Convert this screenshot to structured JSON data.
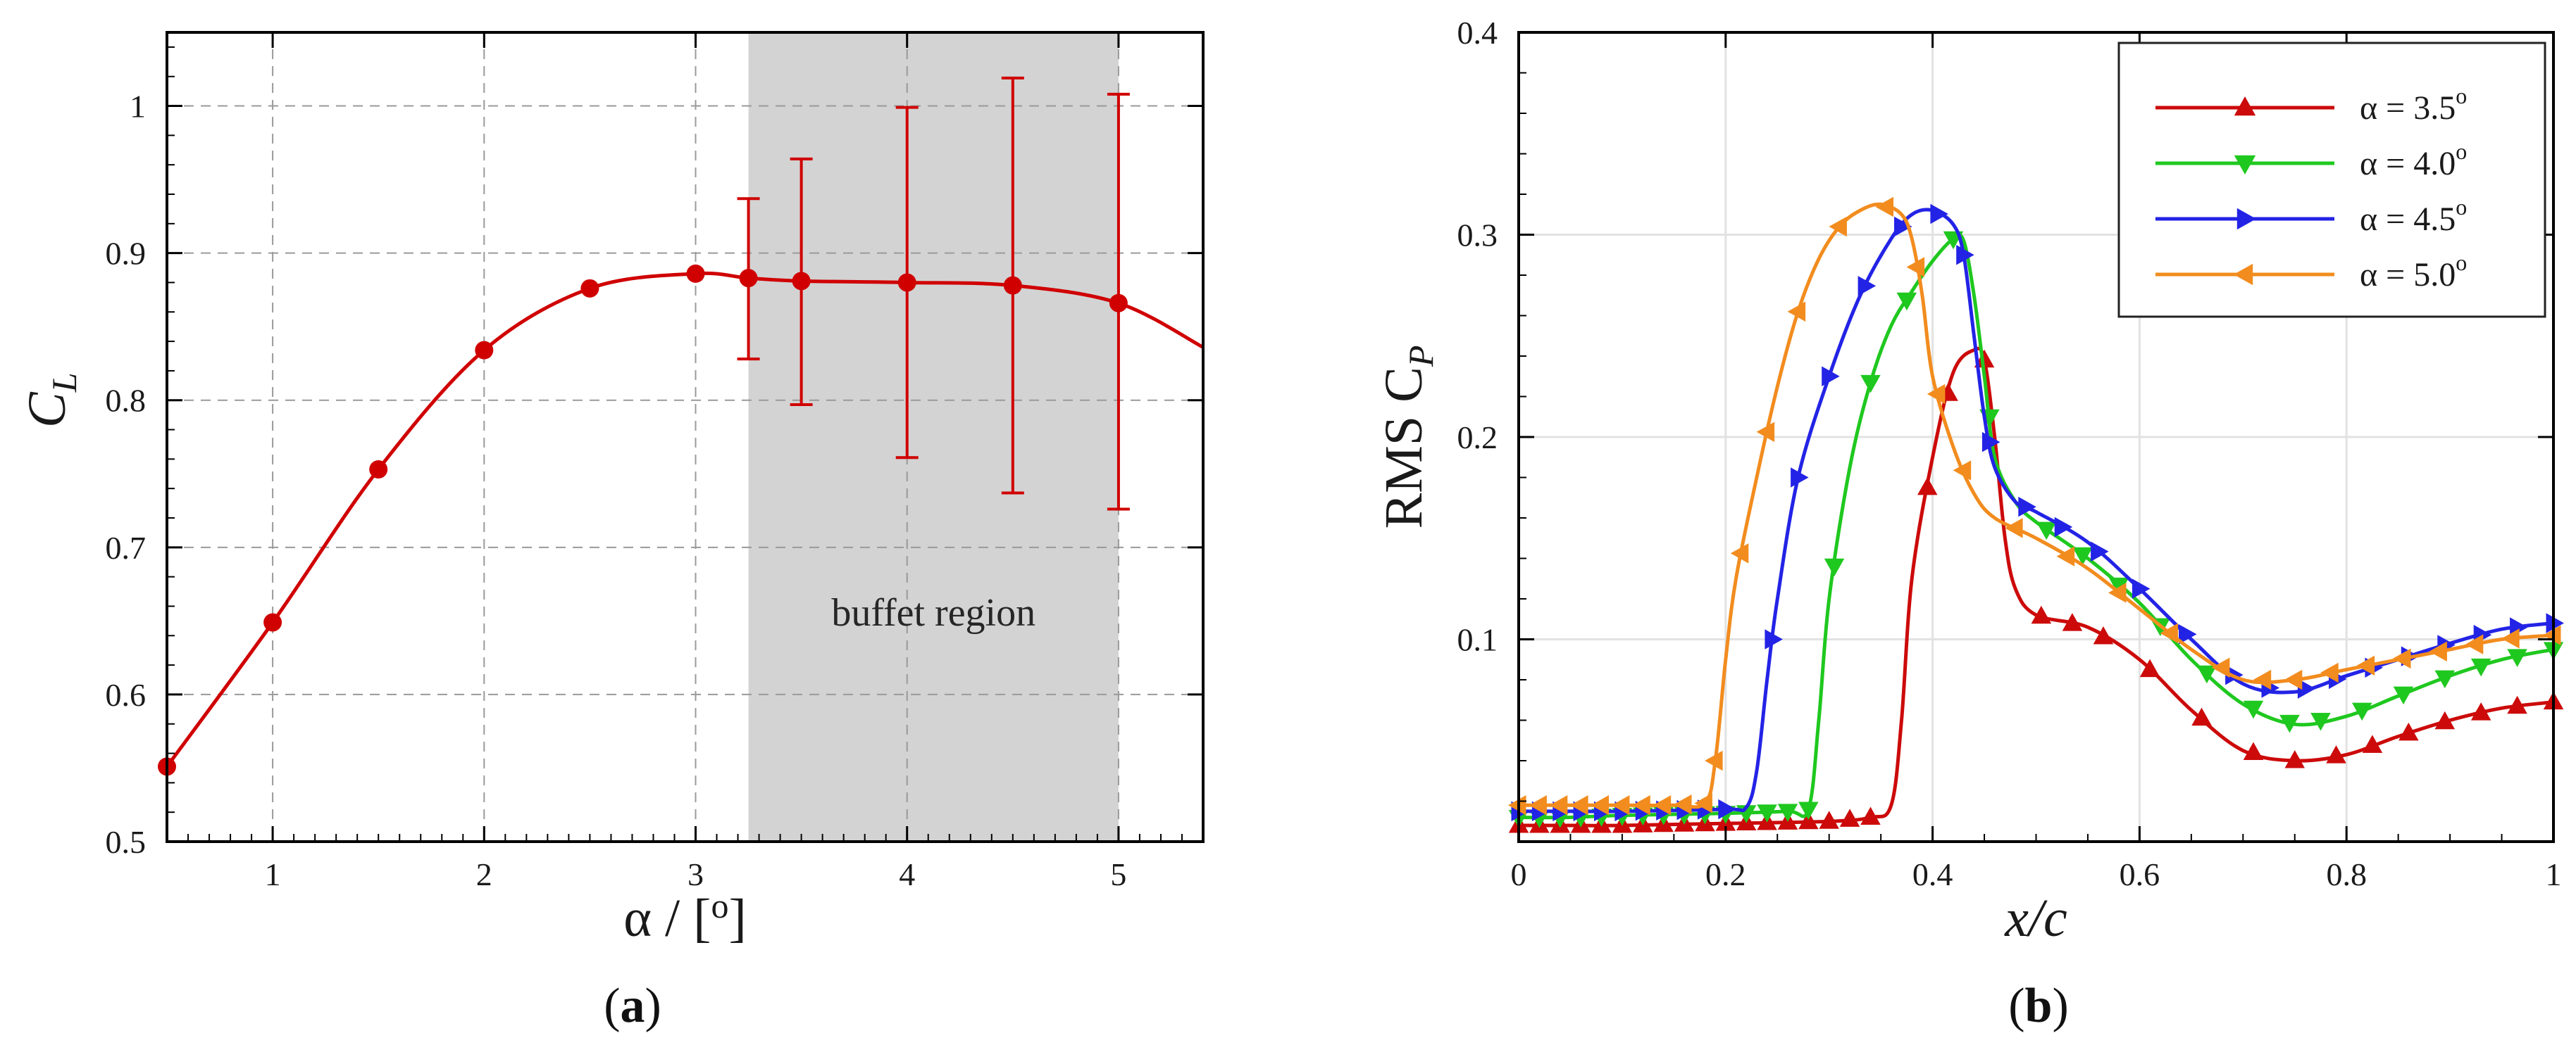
{
  "chart_data": [
    {
      "id": "a",
      "type": "line",
      "panel_label": {
        "open": "(",
        "letter": "a",
        "close": ")"
      },
      "xlabel": "α / [o]",
      "ylabel": "CL",
      "xlabel_parts": {
        "main": "α / [",
        "sup": "o",
        "end": "]"
      },
      "ylabel_parts": {
        "main": "C",
        "sub": "L"
      },
      "xlim": [
        0.5,
        5.4
      ],
      "ylim": [
        0.5,
        1.05
      ],
      "xticks": [
        1,
        2,
        3,
        4,
        5
      ],
      "yticks": [
        0.5,
        0.6,
        0.7,
        0.8,
        0.9,
        1.0
      ],
      "ytick_labels": [
        "0.5",
        "0.6",
        "0.7",
        "0.8",
        "0.9",
        "1"
      ],
      "grid": true,
      "color": "#d00000",
      "region": {
        "x0": 3.25,
        "x1": 5.0,
        "label": "buffet region",
        "fill": "#d3d3d3"
      },
      "curve": {
        "x": [
          0.5,
          1.0,
          1.5,
          2.0,
          2.5,
          3.0,
          3.25,
          3.5,
          4.0,
          4.5,
          5.0,
          5.4
        ],
        "y": [
          0.551,
          0.649,
          0.753,
          0.834,
          0.876,
          0.886,
          0.883,
          0.881,
          0.88,
          0.878,
          0.866,
          0.836
        ]
      },
      "points": {
        "x": [
          0.5,
          1.0,
          1.5,
          2.0,
          2.5,
          3.0,
          3.25,
          3.5,
          4.0,
          4.5,
          5.0
        ],
        "y": [
          0.551,
          0.649,
          0.753,
          0.834,
          0.876,
          0.886,
          0.883,
          0.881,
          0.88,
          0.878,
          0.866
        ]
      },
      "error_bars": [
        {
          "x": 3.25,
          "low": 0.828,
          "high": 0.937
        },
        {
          "x": 3.5,
          "low": 0.797,
          "high": 0.964
        },
        {
          "x": 4.0,
          "low": 0.761,
          "high": 0.999
        },
        {
          "x": 4.5,
          "low": 0.737,
          "high": 1.019
        },
        {
          "x": 5.0,
          "low": 0.726,
          "high": 1.008
        }
      ]
    },
    {
      "id": "b",
      "type": "line",
      "panel_label": {
        "open": "(",
        "letter": "b",
        "close": ")"
      },
      "xlabel": "x/c",
      "ylabel": "RMS CP",
      "ylabel_parts": {
        "main": "RMS C",
        "sub": "P"
      },
      "xlim": [
        0,
        1
      ],
      "ylim": [
        0,
        0.4
      ],
      "xticks": [
        0,
        0.2,
        0.4,
        0.6,
        0.8,
        1.0
      ],
      "xtick_labels": [
        "0",
        "0.2",
        "0.4",
        "0.6",
        "0.8",
        "1"
      ],
      "yticks": [
        0.1,
        0.2,
        0.3,
        0.4
      ],
      "ytick_labels": [
        "0.1",
        "0.2",
        "0.3",
        "0.4"
      ],
      "grid": true,
      "legend": {
        "placement": "top-right"
      },
      "series": [
        {
          "name": "α = 3.5o",
          "label_main": "α = 3.5",
          "label_sup": "o",
          "color": "#cc0a0a",
          "marker": "triangle-up",
          "x": [
            0,
            0.05,
            0.1,
            0.2,
            0.3,
            0.34,
            0.36,
            0.37,
            0.38,
            0.4,
            0.42,
            0.44,
            0.45,
            0.46,
            0.47,
            0.48,
            0.5,
            0.55,
            0.6,
            0.65,
            0.7,
            0.75,
            0.8,
            0.85,
            0.9,
            0.95,
            1.0
          ],
          "y": [
            0.008,
            0.008,
            0.008,
            0.009,
            0.01,
            0.012,
            0.018,
            0.06,
            0.13,
            0.19,
            0.232,
            0.243,
            0.238,
            0.2,
            0.15,
            0.125,
            0.112,
            0.106,
            0.09,
            0.065,
            0.045,
            0.04,
            0.043,
            0.052,
            0.06,
            0.066,
            0.069
          ],
          "marker_x": [
            0,
            0.02,
            0.04,
            0.06,
            0.08,
            0.1,
            0.12,
            0.14,
            0.16,
            0.18,
            0.2,
            0.22,
            0.24,
            0.26,
            0.28,
            0.3,
            0.32,
            0.34,
            0.395,
            0.415,
            0.45,
            0.505,
            0.535,
            0.565,
            0.61,
            0.66,
            0.71,
            0.75,
            0.79,
            0.825,
            0.86,
            0.895,
            0.93,
            0.965,
            1.0
          ]
        },
        {
          "name": "α = 4.0o",
          "label_main": "α = 4.0",
          "label_sup": "o",
          "color": "#1fc81f",
          "marker": "triangle-down",
          "x": [
            0,
            0.05,
            0.1,
            0.2,
            0.26,
            0.28,
            0.29,
            0.3,
            0.32,
            0.34,
            0.36,
            0.38,
            0.4,
            0.42,
            0.43,
            0.44,
            0.45,
            0.46,
            0.48,
            0.5,
            0.55,
            0.6,
            0.65,
            0.7,
            0.75,
            0.8,
            0.85,
            0.9,
            0.95,
            1.0
          ],
          "y": [
            0.012,
            0.012,
            0.013,
            0.014,
            0.015,
            0.016,
            0.06,
            0.12,
            0.185,
            0.227,
            0.255,
            0.272,
            0.287,
            0.298,
            0.297,
            0.27,
            0.23,
            0.19,
            0.168,
            0.158,
            0.14,
            0.118,
            0.09,
            0.068,
            0.058,
            0.062,
            0.072,
            0.082,
            0.09,
            0.095
          ],
          "marker_x": [
            0,
            0.02,
            0.04,
            0.06,
            0.08,
            0.1,
            0.12,
            0.14,
            0.16,
            0.18,
            0.2,
            0.22,
            0.24,
            0.26,
            0.28,
            0.305,
            0.34,
            0.375,
            0.42,
            0.455,
            0.51,
            0.545,
            0.58,
            0.62,
            0.665,
            0.71,
            0.745,
            0.775,
            0.815,
            0.855,
            0.895,
            0.93,
            0.965,
            1.0
          ]
        },
        {
          "name": "α = 4.5o",
          "label_main": "α = 4.5",
          "label_sup": "o",
          "color": "#2323e6",
          "marker": "triangle-right",
          "x": [
            0,
            0.05,
            0.1,
            0.2,
            0.22,
            0.23,
            0.24,
            0.25,
            0.27,
            0.3,
            0.33,
            0.36,
            0.38,
            0.4,
            0.42,
            0.43,
            0.44,
            0.45,
            0.46,
            0.48,
            0.5,
            0.55,
            0.6,
            0.65,
            0.7,
            0.75,
            0.8,
            0.85,
            0.9,
            0.95,
            1.0
          ],
          "y": [
            0.015,
            0.015,
            0.015,
            0.016,
            0.017,
            0.035,
            0.08,
            0.12,
            0.18,
            0.23,
            0.27,
            0.298,
            0.31,
            0.312,
            0.305,
            0.29,
            0.25,
            0.21,
            0.185,
            0.168,
            0.163,
            0.148,
            0.125,
            0.1,
            0.078,
            0.074,
            0.082,
            0.09,
            0.098,
            0.105,
            0.108
          ],
          "marker_x": [
            0,
            0.02,
            0.04,
            0.06,
            0.08,
            0.1,
            0.12,
            0.14,
            0.16,
            0.18,
            0.2,
            0.245,
            0.27,
            0.3,
            0.335,
            0.37,
            0.405,
            0.43,
            0.455,
            0.49,
            0.525,
            0.56,
            0.6,
            0.645,
            0.69,
            0.725,
            0.76,
            0.79,
            0.825,
            0.86,
            0.895,
            0.93,
            0.965,
            1.0
          ]
        },
        {
          "name": "α = 5.0o",
          "label_main": "α = 5.0",
          "label_sup": "o",
          "color": "#f28c1e",
          "marker": "triangle-left",
          "x": [
            0,
            0.05,
            0.1,
            0.15,
            0.18,
            0.19,
            0.2,
            0.21,
            0.23,
            0.25,
            0.27,
            0.29,
            0.31,
            0.33,
            0.35,
            0.37,
            0.38,
            0.39,
            0.4,
            0.42,
            0.44,
            0.46,
            0.5,
            0.55,
            0.6,
            0.65,
            0.7,
            0.75,
            0.8,
            0.85,
            0.9,
            0.95,
            1.0
          ],
          "y": [
            0.018,
            0.018,
            0.018,
            0.018,
            0.019,
            0.04,
            0.09,
            0.13,
            0.18,
            0.225,
            0.262,
            0.288,
            0.304,
            0.312,
            0.315,
            0.31,
            0.298,
            0.27,
            0.23,
            0.195,
            0.172,
            0.16,
            0.15,
            0.135,
            0.115,
            0.095,
            0.08,
            0.08,
            0.085,
            0.09,
            0.095,
            0.1,
            0.102
          ],
          "marker_x": [
            0,
            0.02,
            0.04,
            0.06,
            0.08,
            0.1,
            0.12,
            0.14,
            0.16,
            0.18,
            0.19,
            0.215,
            0.24,
            0.27,
            0.31,
            0.355,
            0.385,
            0.405,
            0.43,
            0.48,
            0.53,
            0.58,
            0.63,
            0.68,
            0.72,
            0.75,
            0.785,
            0.82,
            0.855,
            0.89,
            0.925,
            0.96,
            1.0
          ]
        }
      ]
    }
  ]
}
